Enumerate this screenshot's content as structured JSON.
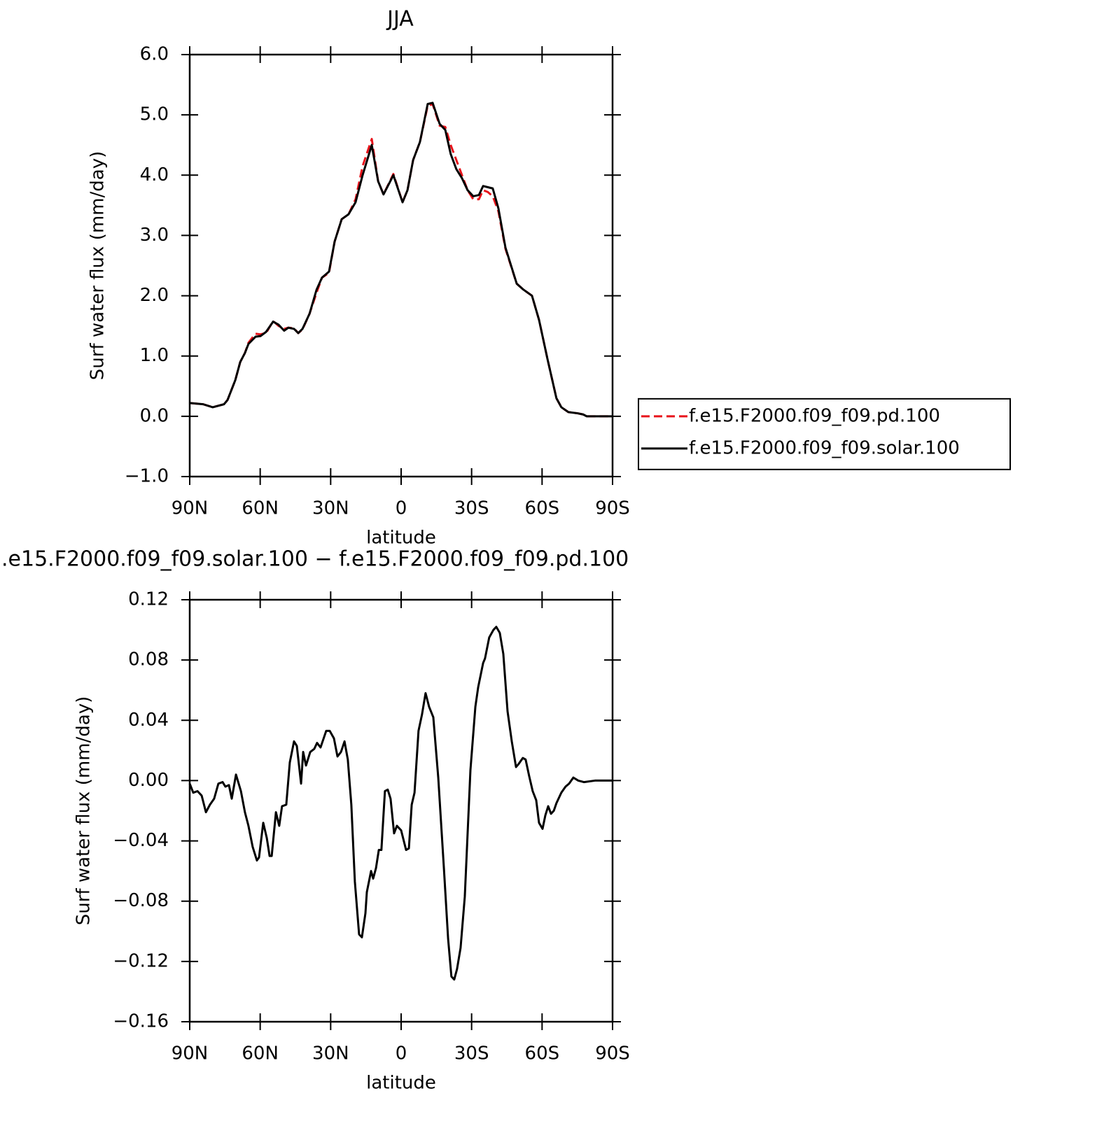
{
  "chart_data": [
    {
      "type": "line",
      "title": "JJA",
      "xlabel": "latitude",
      "ylabel": "Surf water flux (mm/day)",
      "xlim": [
        90,
        -90
      ],
      "ylim": [
        -1,
        6
      ],
      "xticks": [
        {
          "value": 90,
          "label": "90N"
        },
        {
          "value": 60,
          "label": "60N"
        },
        {
          "value": 30,
          "label": "30N"
        },
        0,
        {
          "value": -30,
          "label": "30S"
        },
        {
          "value": -60,
          "label": "60S"
        },
        {
          "value": -90,
          "label": "90S"
        }
      ],
      "yticks": [
        {
          "value": -1,
          "label": "−1.0"
        },
        {
          "value": 0,
          "label": "0.0"
        },
        {
          "value": 1,
          "label": "1.0"
        },
        {
          "value": 2,
          "label": "2.0"
        },
        {
          "value": 3,
          "label": "3.0"
        },
        {
          "value": 4,
          "label": "4.0"
        },
        {
          "value": 5,
          "label": "5.0"
        },
        {
          "value": 6,
          "label": "6.0"
        }
      ],
      "legend": "right",
      "x": [
        90,
        84.3,
        80.2,
        75.4,
        73.9,
        70.6,
        68.5,
        66.5,
        65,
        62,
        59.9,
        57.5,
        54.5,
        52.2,
        49.8,
        48,
        45.6,
        43.8,
        42,
        39,
        36,
        33.7,
        30.7,
        28.3,
        25.3,
        22.4,
        19.4,
        16.4,
        12.5,
        9.8,
        7.5,
        3.3,
        -0.6,
        -2.7,
        -5.1,
        -8,
        -11.3,
        -13.4,
        -16.4,
        -18.8,
        -21.1,
        -23.5,
        -25.9,
        -28.3,
        -30.7,
        -33.1,
        -34.9,
        -36.9,
        -39,
        -41.4,
        -44.4,
        -49.2,
        -52.1,
        -55.7,
        -58.7,
        -62.3,
        -66.1,
        -68.2,
        -71.2,
        -75.1,
        -77.5,
        -79,
        -84,
        -90
      ],
      "series": [
        {
          "name": "f.e15.F2000.f09_f09.pd.100",
          "color": "#e8141b",
          "dash": true,
          "values": [
            0.22,
            0.2,
            0.15,
            0.2,
            0.27,
            0.6,
            0.9,
            1.05,
            1.22,
            1.37,
            1.36,
            1.38,
            1.58,
            1.5,
            1.45,
            1.47,
            1.46,
            1.38,
            1.44,
            1.7,
            2.05,
            2.3,
            2.38,
            2.9,
            3.27,
            3.35,
            3.6,
            4.15,
            4.6,
            3.9,
            3.68,
            4.02,
            3.55,
            3.75,
            4.25,
            4.55,
            5.15,
            5.18,
            4.82,
            4.8,
            4.5,
            4.25,
            4.0,
            3.75,
            3.6,
            3.6,
            3.75,
            3.72,
            3.65,
            3.4,
            2.78,
            2.2,
            2.1,
            2.0,
            1.6,
            0.95,
            0.3,
            0.15,
            0.07,
            0.05,
            0.03,
            0,
            0,
            0
          ]
        },
        {
          "name": "f.e15.F2000.f09_f09.solar.100",
          "color": "#000000",
          "dash": false,
          "values": [
            0.22,
            0.2,
            0.15,
            0.2,
            0.27,
            0.6,
            0.9,
            1.05,
            1.2,
            1.32,
            1.33,
            1.4,
            1.57,
            1.52,
            1.42,
            1.47,
            1.45,
            1.38,
            1.45,
            1.7,
            2.1,
            2.3,
            2.4,
            2.9,
            3.27,
            3.35,
            3.55,
            4.0,
            4.5,
            3.9,
            3.68,
            4.0,
            3.55,
            3.75,
            4.25,
            4.55,
            5.18,
            5.2,
            4.85,
            4.75,
            4.35,
            4.1,
            3.95,
            3.75,
            3.65,
            3.67,
            3.82,
            3.8,
            3.78,
            3.45,
            2.8,
            2.2,
            2.1,
            2.0,
            1.6,
            0.95,
            0.3,
            0.15,
            0.07,
            0.05,
            0.03,
            0,
            0,
            0
          ]
        }
      ]
    },
    {
      "type": "line",
      "title": ".e15.F2000.f09_f09.solar.100 − f.e15.F2000.f09_f09.pd.100",
      "xlabel": "latitude",
      "ylabel": "Surf water flux (mm/day)",
      "xlim": [
        90,
        -90
      ],
      "ylim": [
        -0.16,
        0.12
      ],
      "xticks": [
        {
          "value": 90,
          "label": "90N"
        },
        {
          "value": 60,
          "label": "60N"
        },
        {
          "value": 30,
          "label": "30N"
        },
        0,
        {
          "value": -30,
          "label": "30S"
        },
        {
          "value": -60,
          "label": "60S"
        },
        {
          "value": -90,
          "label": "90S"
        }
      ],
      "yticks": [
        {
          "value": -0.16,
          "label": "−0.16"
        },
        {
          "value": -0.12,
          "label": "−0.12"
        },
        {
          "value": -0.08,
          "label": "−0.08"
        },
        {
          "value": -0.04,
          "label": "−0.04"
        },
        {
          "value": 0,
          "label": "0.00"
        },
        0.04,
        0.08,
        0.12
      ],
      "x": [
        90,
        88.5,
        86.7,
        84.9,
        83.1,
        81.4,
        79.6,
        77.8,
        76,
        74.8,
        73.3,
        72.1,
        70.3,
        68.2,
        66.5,
        65,
        63.2,
        61.4,
        60.5,
        58.7,
        57.2,
        56,
        55.1,
        53.3,
        51.9,
        50.7,
        48.9,
        47.4,
        45.6,
        44.4,
        42.6,
        41.7,
        40.5,
        38.7,
        37,
        35.8,
        34.3,
        31.9,
        30.4,
        28.6,
        27.1,
        25.6,
        24.1,
        22.7,
        21.2,
        19.7,
        17.9,
        16.7,
        15.2,
        14.6,
        12.8,
        11.9,
        10.7,
        9.5,
        8.4,
        6.9,
        5.7,
        4.5,
        3,
        1.8,
        0,
        -2.1,
        -3.3,
        -4.5,
        -5.7,
        -7.4,
        -8.9,
        -10.4,
        -11.9,
        -13.7,
        -15.8,
        -18.2,
        -20,
        -21.4,
        -22.6,
        -23.8,
        -25.3,
        -27.1,
        -29.5,
        -31.6,
        -32.8,
        -34.9,
        -35.7,
        -37.5,
        -39.3,
        -40.5,
        -42,
        -43.5,
        -45.3,
        -47.1,
        -48.9,
        -50,
        -51.8,
        -53,
        -54.5,
        -56,
        -57.5,
        -58.7,
        -60.2,
        -61.4,
        -62.6,
        -63.8,
        -65,
        -66.1,
        -68.2,
        -70,
        -71.5,
        -73.3,
        -75.4,
        -77.8,
        -82.5,
        -90
      ],
      "series": [
        {
          "color": "#000000",
          "dash": false,
          "values": [
            -0.002,
            -0.008,
            -0.007,
            -0.01,
            -0.021,
            -0.016,
            -0.012,
            -0.002,
            -0.001,
            -0.004,
            -0.003,
            -0.012,
            0.004,
            -0.007,
            -0.021,
            -0.03,
            -0.044,
            -0.053,
            -0.051,
            -0.028,
            -0.038,
            -0.05,
            -0.05,
            -0.021,
            -0.03,
            -0.017,
            -0.016,
            0.012,
            0.026,
            0.023,
            -0.002,
            0.019,
            0.01,
            0.019,
            0.021,
            0.025,
            0.022,
            0.033,
            0.033,
            0.028,
            0.016,
            0.019,
            0.026,
            0.014,
            -0.016,
            -0.067,
            -0.102,
            -0.104,
            -0.088,
            -0.074,
            -0.06,
            -0.065,
            -0.058,
            -0.046,
            -0.046,
            -0.007,
            -0.006,
            -0.012,
            -0.035,
            -0.03,
            -0.033,
            -0.046,
            -0.045,
            -0.016,
            -0.008,
            0.033,
            0.044,
            0.058,
            0.049,
            0.042,
            0.002,
            -0.058,
            -0.105,
            -0.13,
            -0.132,
            -0.125,
            -0.111,
            -0.077,
            0.007,
            0.049,
            0.062,
            0.078,
            0.081,
            0.095,
            0.1,
            0.102,
            0.098,
            0.084,
            0.046,
            0.026,
            0.009,
            0.011,
            0.015,
            0.014,
            0.003,
            -0.007,
            -0.013,
            -0.028,
            -0.032,
            -0.023,
            -0.017,
            -0.022,
            -0.02,
            -0.015,
            -0.008,
            -0.004,
            -0.002,
            0.002,
            0,
            -0.001,
            0,
            0
          ]
        }
      ]
    }
  ]
}
